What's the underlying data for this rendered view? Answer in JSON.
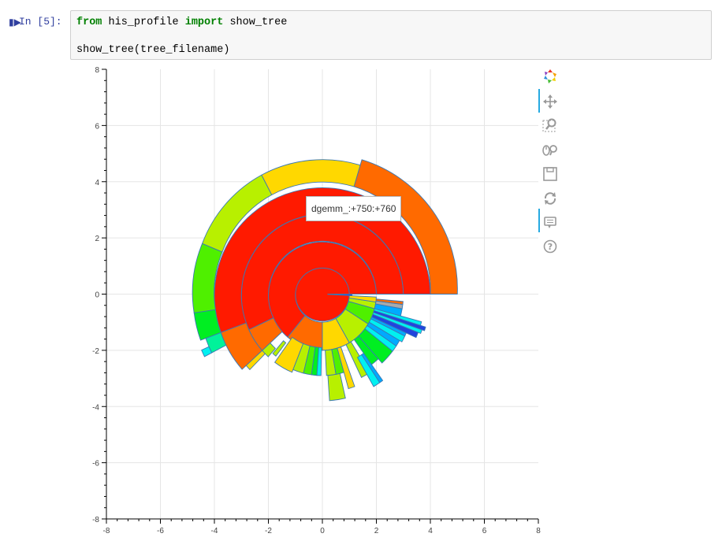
{
  "cell": {
    "run_icon": "run-icon",
    "prompt": "In [5]:",
    "code_line1": {
      "kw_from": "from",
      "module": " his_profile ",
      "kw_import": "import",
      "name": " show_tree"
    },
    "code_line2": "show_tree(tree_filename)"
  },
  "plot": {
    "tooltip": "dgemm_:+750:+760",
    "x_ticks": [
      "-8",
      "-6",
      "-4",
      "-2",
      "0",
      "2",
      "4",
      "6",
      "8"
    ],
    "y_ticks": [
      "8",
      "6",
      "4",
      "2",
      "0",
      "-2",
      "-4",
      "-6",
      "-8"
    ]
  },
  "toolbar": {
    "tools": [
      "bokeh-logo-icon",
      "pan-icon",
      "box-zoom-icon",
      "wheel-zoom-icon",
      "save-icon",
      "reset-icon",
      "hover-icon",
      "help-icon"
    ]
  },
  "chart_data": {
    "type": "sunburst",
    "title": "",
    "xlabel": "",
    "ylabel": "",
    "xlim": [
      -8,
      8
    ],
    "ylim": [
      -8,
      8
    ],
    "grid": true,
    "note_units": "radii and angles in data units / degrees",
    "segments": [
      {
        "r0": 0,
        "r1": 1,
        "a0": 0,
        "a1": 360,
        "color": "#ff1a00"
      },
      {
        "r0": 1,
        "r1": 2,
        "a0": 0,
        "a1": 230,
        "color": "#ff1a00"
      },
      {
        "r0": 2,
        "r1": 3,
        "a0": 0,
        "a1": 205,
        "color": "#ff1a00"
      },
      {
        "r0": 3,
        "r1": 4,
        "a0": 0,
        "a1": 200,
        "color": "#ff1a00"
      },
      {
        "r0": 4,
        "r1": 5,
        "a0": 0,
        "a1": 73,
        "color": "#ff6a00"
      },
      {
        "r0": 4,
        "r1": 4.8,
        "a0": 73,
        "a1": 118,
        "color": "#ffd800"
      },
      {
        "r0": 4,
        "r1": 4.8,
        "a0": 118,
        "a1": 158,
        "color": "#b8f000"
      },
      {
        "r0": 4,
        "r1": 4.8,
        "a0": 158,
        "a1": 188,
        "color": "#4ff000"
      },
      {
        "r0": 4,
        "r1": 4.8,
        "a0": 188,
        "a1": 200,
        "color": "#00ee22"
      },
      {
        "r0": 4,
        "r1": 4.6,
        "a0": 200,
        "a1": 207,
        "color": "#00f29a"
      },
      {
        "r0": 4.6,
        "r1": 4.9,
        "a0": 204,
        "a1": 207,
        "color": "#00f0f0"
      },
      {
        "r0": 3,
        "r1": 4,
        "a0": 200,
        "a1": 222,
        "color": "#ff6a00"
      },
      {
        "r0": 2,
        "r1": 3,
        "a0": 205,
        "a1": 222,
        "color": "#ff6a00"
      },
      {
        "r0": 2.6,
        "r1": 3,
        "a0": 222,
        "a1": 228,
        "color": "#b8f000"
      },
      {
        "r0": 3,
        "r1": 3.8,
        "a0": 222,
        "a1": 225,
        "color": "#ffd800"
      },
      {
        "r0": 2.2,
        "r1": 2.8,
        "a0": 229,
        "a1": 232,
        "color": "#b8f000"
      },
      {
        "r0": 1,
        "r1": 2,
        "a0": 230,
        "a1": 270,
        "color": "#ff6a00"
      },
      {
        "r0": 1.9,
        "r1": 3,
        "a0": 234,
        "a1": 248,
        "color": "#ffd800"
      },
      {
        "r0": 1.9,
        "r1": 2.9,
        "a0": 248,
        "a1": 256,
        "color": "#b8f000"
      },
      {
        "r0": 1.9,
        "r1": 2.9,
        "a0": 256,
        "a1": 262,
        "color": "#4ff000"
      },
      {
        "r0": 1.9,
        "r1": 2.9,
        "a0": 262,
        "a1": 266,
        "color": "#00ee22"
      },
      {
        "r0": 1.9,
        "r1": 2.9,
        "a0": 266,
        "a1": 269,
        "color": "#00f0f0"
      },
      {
        "r0": 1,
        "r1": 2,
        "a0": 270,
        "a1": 300,
        "color": "#ffd800"
      },
      {
        "r0": 2,
        "r1": 2.9,
        "a0": 273,
        "a1": 280,
        "color": "#b8f000"
      },
      {
        "r0": 2.9,
        "r1": 3.8,
        "a0": 274,
        "a1": 283,
        "color": "#b8f000"
      },
      {
        "r0": 2,
        "r1": 2.9,
        "a0": 280,
        "a1": 286,
        "color": "#4ff000"
      },
      {
        "r0": 2,
        "r1": 3.5,
        "a0": 286,
        "a1": 290,
        "color": "#ffd800"
      },
      {
        "r0": 1,
        "r1": 2,
        "a0": 300,
        "a1": 328,
        "color": "#b8f000"
      },
      {
        "r0": 2,
        "r1": 3.3,
        "a0": 296,
        "a1": 302,
        "color": "#b8f000"
      },
      {
        "r0": 2.6,
        "r1": 3.8,
        "a0": 300,
        "a1": 304,
        "color": "#00f0f0"
      },
      {
        "r0": 2.6,
        "r1": 3.8,
        "a0": 304,
        "a1": 306,
        "color": "#00aaff"
      },
      {
        "r0": 2,
        "r1": 3.1,
        "a0": 306,
        "a1": 312,
        "color": "#00ee22"
      },
      {
        "r0": 2,
        "r1": 3.3,
        "a0": 312,
        "a1": 322,
        "color": "#00ee22"
      },
      {
        "r0": 2,
        "r1": 3.3,
        "a0": 322,
        "a1": 326,
        "color": "#00f0f0"
      },
      {
        "r0": 2,
        "r1": 3.3,
        "a0": 326,
        "a1": 330,
        "color": "#00aaff"
      },
      {
        "r0": 1,
        "r1": 2,
        "a0": 328,
        "a1": 345,
        "color": "#4ff000"
      },
      {
        "r0": 2,
        "r1": 3.4,
        "a0": 330,
        "a1": 334,
        "color": "#00f0f0"
      },
      {
        "r0": 2,
        "r1": 3.4,
        "a0": 334,
        "a1": 336,
        "color": "#00aaff"
      },
      {
        "r0": 2,
        "r1": 3.8,
        "a0": 336,
        "a1": 339,
        "color": "#2244dd"
      },
      {
        "r0": 2,
        "r1": 3.9,
        "a0": 339,
        "a1": 341,
        "color": "#00f0f0"
      },
      {
        "r0": 2,
        "r1": 4,
        "a0": 341,
        "a1": 343,
        "color": "#2244dd"
      },
      {
        "r0": 2,
        "r1": 3.8,
        "a0": 343,
        "a1": 345,
        "color": "#00f0f0"
      },
      {
        "r0": 1,
        "r1": 2,
        "a0": 345,
        "a1": 352,
        "color": "#b8f000"
      },
      {
        "r0": 2,
        "r1": 3,
        "a0": 345,
        "a1": 350,
        "color": "#00aaff"
      },
      {
        "r0": 2,
        "r1": 3,
        "a0": 350,
        "a1": 353,
        "color": "#aaaaaa"
      },
      {
        "r0": 2,
        "r1": 3,
        "a0": 353,
        "a1": 355,
        "color": "#ff6a00"
      },
      {
        "r0": 1,
        "r1": 2,
        "a0": 352,
        "a1": 357,
        "color": "#ffd800"
      },
      {
        "r0": 0.2,
        "r1": 1.1,
        "a0": 357,
        "a1": 360,
        "color": "#2244dd"
      }
    ]
  }
}
